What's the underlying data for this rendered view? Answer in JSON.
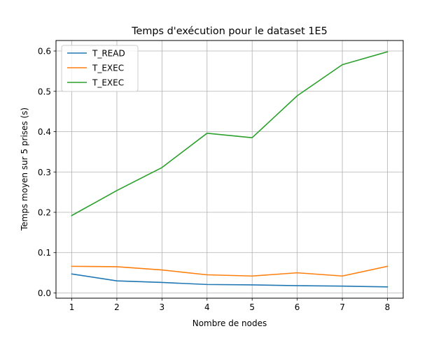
{
  "chart_data": {
    "type": "line",
    "title": "Temps d'exécution pour le dataset 1E5",
    "xlabel": "Nombre de nodes",
    "ylabel": "Temps moyen sur 5 prises (s)",
    "x": [
      1,
      2,
      3,
      4,
      5,
      6,
      7,
      8
    ],
    "xticks": [
      "1",
      "2",
      "3",
      "4",
      "5",
      "6",
      "7",
      "8"
    ],
    "yticks": [
      "0.0",
      "0.1",
      "0.2",
      "0.3",
      "0.4",
      "0.5",
      "0.6"
    ],
    "xlim": [
      0.65,
      8.35
    ],
    "ylim": [
      -0.013,
      0.626
    ],
    "grid": true,
    "legend_position": "top-left",
    "series": [
      {
        "name": "T_READ",
        "color": "#1f77b4",
        "values": [
          0.047,
          0.03,
          0.026,
          0.021,
          0.02,
          0.018,
          0.017,
          0.015
        ]
      },
      {
        "name": "T_EXEC",
        "color": "#ff7f0e",
        "values": [
          0.066,
          0.065,
          0.057,
          0.045,
          0.042,
          0.05,
          0.042,
          0.066
        ]
      },
      {
        "name": "T_EXEC",
        "color": "#2ca02c",
        "values": [
          0.192,
          0.254,
          0.311,
          0.396,
          0.385,
          0.489,
          0.566,
          0.598
        ]
      }
    ]
  }
}
